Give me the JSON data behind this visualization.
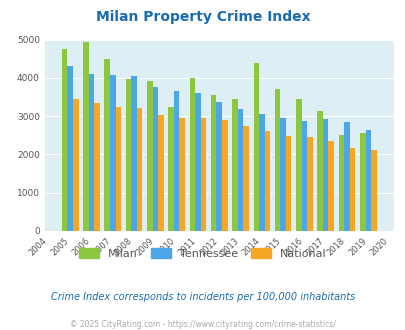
{
  "title": "Milan Property Crime Index",
  "years": [
    2004,
    2005,
    2006,
    2007,
    2008,
    2009,
    2010,
    2011,
    2012,
    2013,
    2014,
    2015,
    2016,
    2017,
    2018,
    2019,
    2020
  ],
  "milan": [
    null,
    4750,
    4950,
    4500,
    3980,
    3920,
    3230,
    4000,
    3560,
    3450,
    4400,
    3700,
    3450,
    3130,
    2510,
    2560,
    null
  ],
  "tennessee": [
    null,
    4300,
    4100,
    4080,
    4060,
    3750,
    3650,
    3600,
    3380,
    3180,
    3060,
    2950,
    2880,
    2930,
    2840,
    2640,
    null
  ],
  "national": [
    null,
    3450,
    3350,
    3240,
    3210,
    3030,
    2960,
    2940,
    2900,
    2730,
    2600,
    2490,
    2450,
    2360,
    2180,
    2120,
    null
  ],
  "milan_color": "#8dc63f",
  "tennessee_color": "#4da6e8",
  "national_color": "#f5a623",
  "plot_bg": "#ddeef5",
  "ylim": [
    0,
    5000
  ],
  "yticks": [
    0,
    1000,
    2000,
    3000,
    4000,
    5000
  ],
  "subtitle": "Crime Index corresponds to incidents per 100,000 inhabitants",
  "footer": "© 2025 CityRating.com - https://www.cityrating.com/crime-statistics/",
  "title_color": "#1a6cb0",
  "subtitle_color": "#1a6cb0",
  "footer_color": "#aaaaaa",
  "legend_text_color": "#555555"
}
